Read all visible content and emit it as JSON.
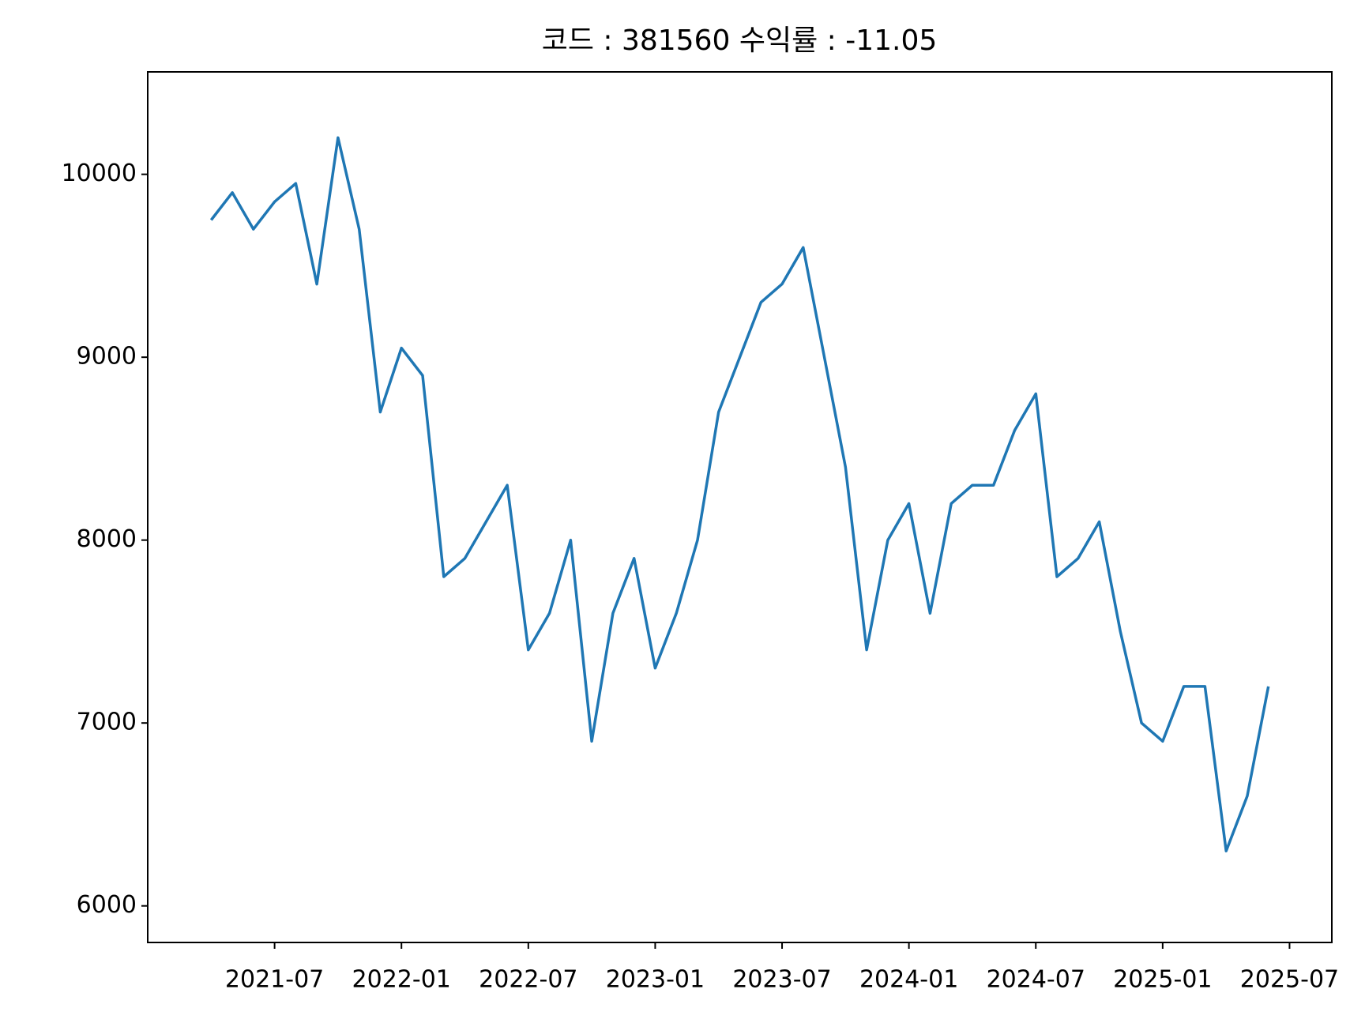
{
  "chart_data": {
    "type": "line",
    "title": "코드 : 381560 수익률 : -11.05",
    "x": [
      "2021-04",
      "2021-05",
      "2021-06",
      "2021-07",
      "2021-08",
      "2021-09",
      "2021-10",
      "2021-11",
      "2021-12",
      "2022-01",
      "2022-02",
      "2022-03",
      "2022-04",
      "2022-05",
      "2022-06",
      "2022-07",
      "2022-08",
      "2022-09",
      "2022-10",
      "2022-11",
      "2022-12",
      "2023-01",
      "2023-02",
      "2023-03",
      "2023-04",
      "2023-05",
      "2023-06",
      "2023-07",
      "2023-08",
      "2023-09",
      "2023-10",
      "2023-11",
      "2023-12",
      "2024-01",
      "2024-02",
      "2024-03",
      "2024-04",
      "2024-05",
      "2024-06",
      "2024-07",
      "2024-08",
      "2024-09",
      "2024-10",
      "2024-11",
      "2024-12",
      "2025-01",
      "2025-02",
      "2025-03",
      "2025-04",
      "2025-05",
      "2025-06"
    ],
    "series": [
      {
        "name": "381560",
        "color": "#1f77b4",
        "values": [
          9750,
          9900,
          9700,
          9850,
          9950,
          9400,
          10200,
          9700,
          8700,
          9050,
          8900,
          7800,
          7900,
          8100,
          8300,
          7400,
          7600,
          8000,
          6900,
          7600,
          7900,
          7300,
          7600,
          8000,
          8700,
          9000,
          9300,
          9400,
          9600,
          9000,
          8400,
          7400,
          8000,
          8200,
          7600,
          8200,
          8300,
          8300,
          8600,
          8800,
          7800,
          7900,
          8100,
          7500,
          7000,
          6900,
          7200,
          7200,
          6300,
          6600,
          7200
        ]
      }
    ],
    "xlim": [
      "2021-01",
      "2025-09"
    ],
    "xticks": [
      "2021-07",
      "2022-01",
      "2022-07",
      "2023-01",
      "2023-07",
      "2024-01",
      "2024-07",
      "2025-01",
      "2025-07"
    ],
    "ylim": [
      5800,
      10560
    ],
    "yticks": [
      6000,
      7000,
      8000,
      9000,
      10000
    ]
  }
}
